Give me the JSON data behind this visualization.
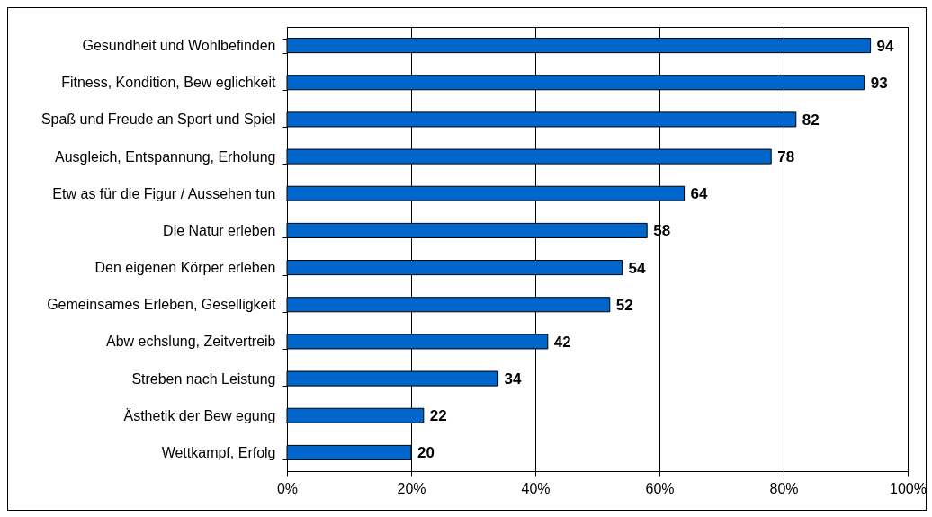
{
  "chart_data": {
    "type": "bar",
    "orientation": "horizontal",
    "categories": [
      "Gesundheit und Wohlbefinden",
      "Fitness, Kondition, Bew eglichkeit",
      "Spaß und Freude an Sport und Spiel",
      "Ausgleich, Entspannung, Erholung",
      "Etw as für die Figur / Aussehen tun",
      "Die Natur erleben",
      "Den eigenen Körper erleben",
      "Gemeinsames Erleben, Geselligkeit",
      "Abw echslung, Zeitvertreib",
      "Streben nach Leistung",
      "Ästhetik der Bew egung",
      "Wettkampf, Erfolg"
    ],
    "values": [
      94,
      93,
      82,
      78,
      64,
      58,
      54,
      52,
      42,
      34,
      22,
      20
    ],
    "color": "#0066cc",
    "xlim": [
      0,
      100
    ],
    "xticks": [
      {
        "value": 0,
        "label": "0%"
      },
      {
        "value": 20,
        "label": "20%"
      },
      {
        "value": 40,
        "label": "40%"
      },
      {
        "value": 60,
        "label": "60%"
      },
      {
        "value": 80,
        "label": "80%"
      },
      {
        "value": 100,
        "label": "100%"
      }
    ],
    "grid": "x",
    "data_labels": true
  }
}
